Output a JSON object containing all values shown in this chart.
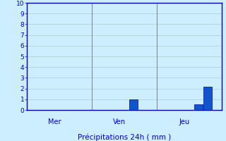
{
  "title": "Précipitations 24h ( mm )",
  "ylim": [
    0,
    10
  ],
  "yticks": [
    0,
    1,
    2,
    3,
    4,
    5,
    6,
    7,
    8,
    9,
    10
  ],
  "background_color": "#cceeff",
  "grid_color": "#aacccc",
  "bar_color": "#1155cc",
  "bar_edge_color": "#0000aa",
  "axis_color": "#0000bb",
  "label_color": "#0000cc",
  "title_color": "#0000cc",
  "tick_color": "#0000cc",
  "vline_color": "#888899",
  "day_labels": [
    "Mer",
    "Ven",
    "Jeu"
  ],
  "n_bars": 21,
  "bar_values": [
    0,
    0,
    0,
    0,
    0,
    0,
    0,
    0,
    0,
    0,
    0,
    1.0,
    0,
    0,
    0,
    0,
    0,
    0,
    0.5,
    2.2,
    0
  ],
  "bar_width": 0.9,
  "day_bar_starts": [
    0,
    7,
    14
  ],
  "figsize": [
    3.2,
    2.0
  ],
  "dpi": 100
}
